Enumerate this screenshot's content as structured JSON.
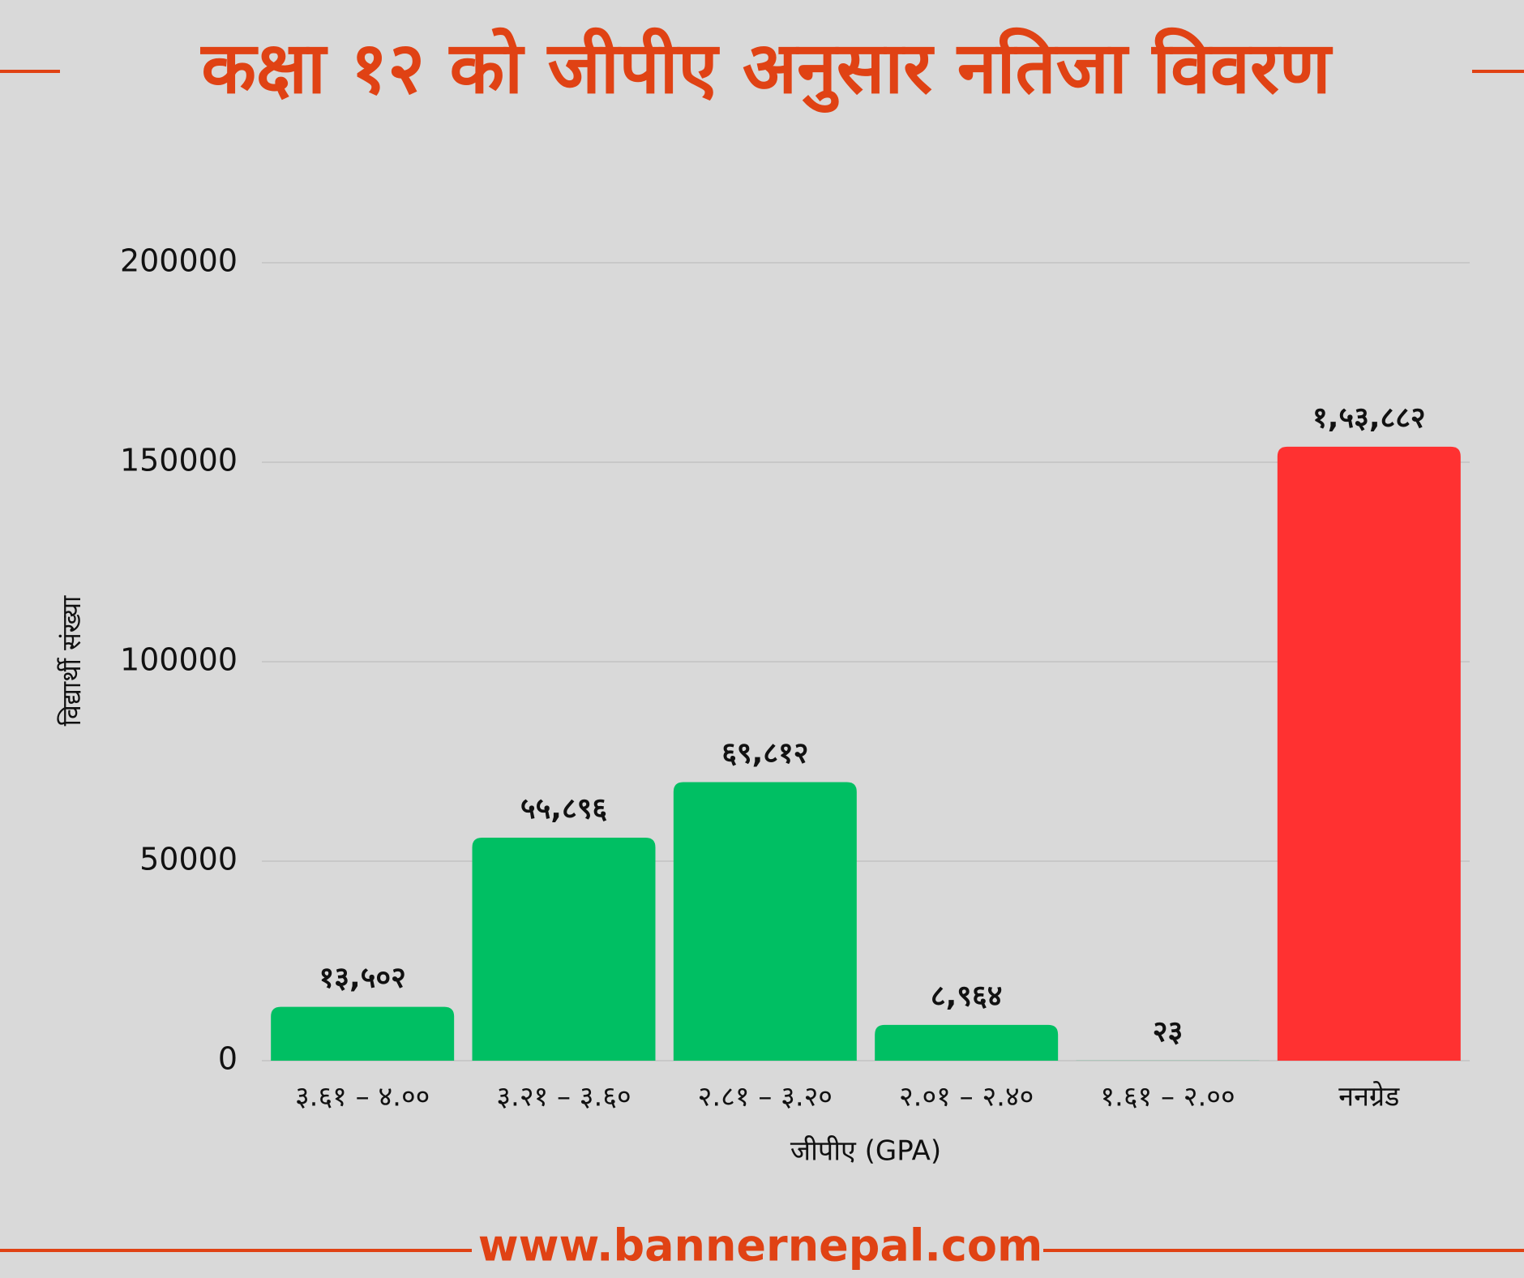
{
  "chart_data": {
    "type": "bar",
    "title": "कक्षा १२ को जीपीए अनुसार नतिजा विवरण",
    "x_label": "जीपीए (GPA)",
    "y_label": "विद्यार्थी संख्या",
    "footer": "www.bannernepal.com",
    "categories": [
      "३.६१ – ४.००",
      "३.२१ – ३.६०",
      "२.८१ – ३.२०",
      "२.०१ – २.४०",
      "१.६१ – २.००",
      "ननग्रेड"
    ],
    "values": [
      13502,
      55896,
      69812,
      8964,
      23,
      153882
    ],
    "value_labels": [
      "१३,५०२",
      "५५,८९६",
      "६९,८१२",
      "८,९६४",
      "२३",
      "१,५३,८८२"
    ],
    "colors": [
      "#00bf63",
      "#00bf63",
      "#00bf63",
      "#00bf63",
      "#00bf63",
      "#ff3131"
    ],
    "ylim": [
      0,
      200000
    ],
    "yticks": [
      0,
      50000,
      100000,
      150000,
      200000
    ],
    "grid": true
  }
}
